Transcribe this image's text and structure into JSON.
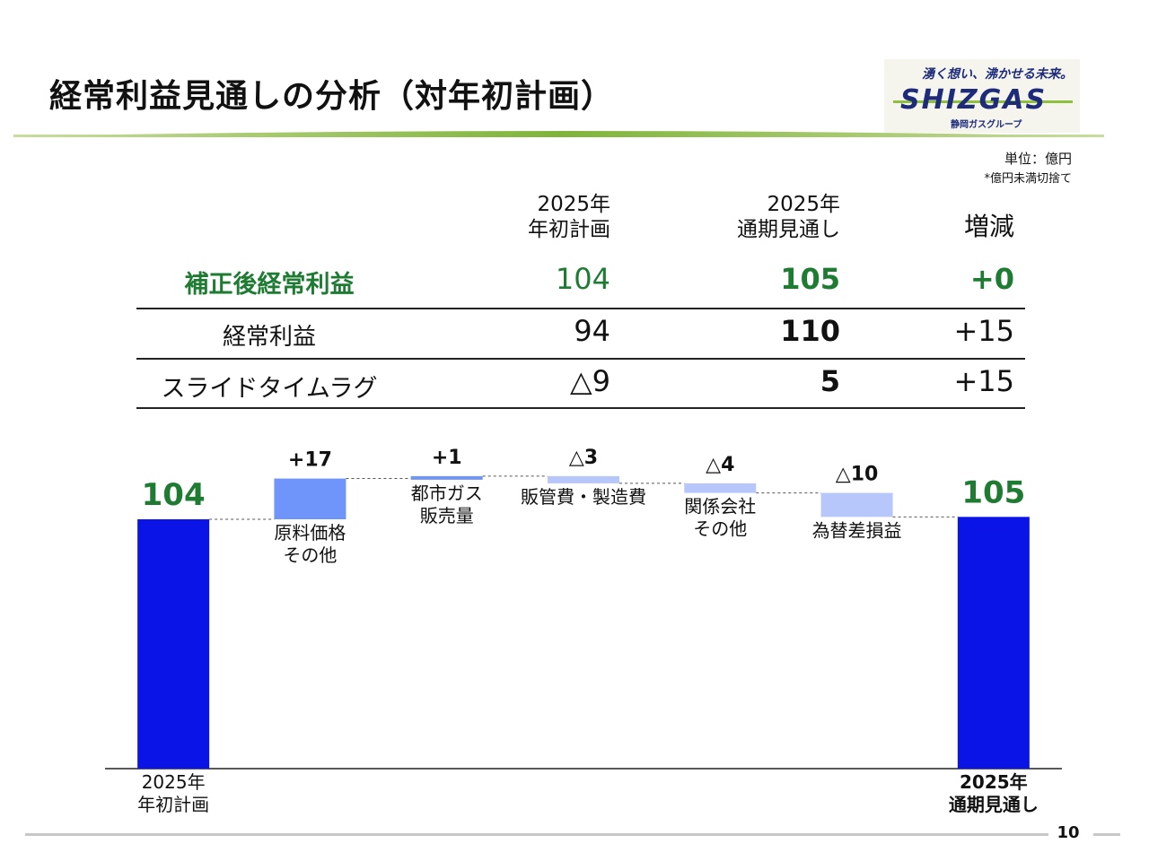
{
  "title": "経常利益見通しの分析（対年初計画）",
  "logo": {
    "tagline": "湧く想い、沸かせる未来。",
    "word": "SHIZGAS",
    "group": "静岡ガスグループ"
  },
  "unit": {
    "label": "単位：億円",
    "note": "*億円未満切捨て"
  },
  "table": {
    "col_headers": [
      {
        "line1": "2025年",
        "line2": "年初計画"
      },
      {
        "line1": "2025年",
        "line2": "通期見通し"
      },
      {
        "line1": "",
        "line2": "増減"
      }
    ],
    "rows": [
      {
        "label": "補正後経常利益",
        "values": [
          "104",
          "105",
          "+0"
        ]
      },
      {
        "label": "経常利益",
        "values": [
          "94",
          "110",
          "+15"
        ]
      },
      {
        "label": "スライドタイムラグ",
        "values": [
          "△9",
          "5",
          "+15"
        ]
      }
    ]
  },
  "chart_data": {
    "type": "bar",
    "subtype": "waterfall",
    "ylim": [
      0,
      120
    ],
    "categories": [
      {
        "name_lines": [
          "2025年",
          "年初計画"
        ],
        "kind": "total",
        "value": 104,
        "label": "104"
      },
      {
        "name_lines": [
          "原料価格",
          "その他"
        ],
        "kind": "delta",
        "value": 17,
        "label": "+17"
      },
      {
        "name_lines": [
          "都市ガス",
          "販売量"
        ],
        "kind": "delta",
        "value": 1,
        "label": "+1"
      },
      {
        "name_lines": [
          "販管費・製造費"
        ],
        "kind": "delta",
        "value": -3,
        "label": "△3"
      },
      {
        "name_lines": [
          "関係会社",
          "その他"
        ],
        "kind": "delta",
        "value": -4,
        "label": "△4"
      },
      {
        "name_lines": [
          "為替差損益"
        ],
        "kind": "delta",
        "value": -10,
        "label": "△10"
      },
      {
        "name_lines": [
          "2025年",
          "通期見通し"
        ],
        "kind": "total",
        "value": 105,
        "label": "105"
      }
    ],
    "colors": {
      "total": "#0a14e6",
      "increase": "#6f95fb",
      "decrease": "#b7c7fb",
      "total_label": "#1e7b32"
    }
  },
  "footer": {
    "page": "10"
  }
}
